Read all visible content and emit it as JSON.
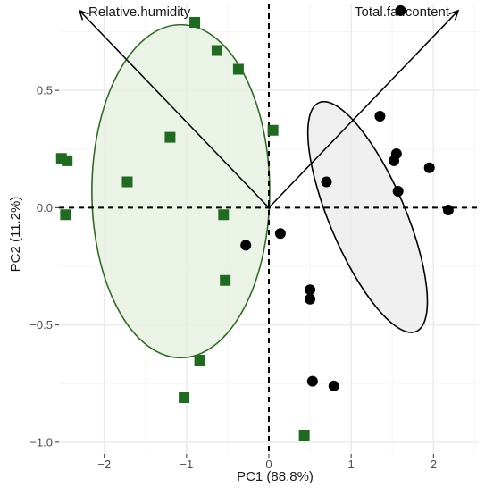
{
  "chart_data": {
    "type": "scatter",
    "title": "",
    "xlabel": "PC1 (88.8%)",
    "ylabel": "PC2 (11.2%)",
    "xlim": [
      -2.55,
      2.55
    ],
    "ylim": [
      -1.05,
      0.87
    ],
    "x_ticks": [
      -2,
      -1,
      0,
      1,
      2
    ],
    "y_ticks": [
      -1.0,
      -0.5,
      0.0,
      0.5
    ],
    "x_tick_labels": [
      "−2",
      "−1",
      "0",
      "1",
      "2"
    ],
    "y_tick_labels": [
      "−1.0",
      "−0.5",
      "0.0",
      "0.5"
    ],
    "grid": true,
    "colors": {
      "green_group": "#1f6b1f",
      "green_ellipse_stroke": "#2f6b24",
      "green_ellipse_fill": "#e8f1e2",
      "black_group": "#000000",
      "black_ellipse_fill": "#ececec",
      "grid_major": "#ebebeb",
      "grid_minor": "#f5f5f5"
    },
    "series": [
      {
        "marker": "square",
        "color": "#1f6b1f",
        "points": [
          [
            -0.9,
            0.79
          ],
          [
            -0.63,
            0.67
          ],
          [
            -0.37,
            0.59
          ],
          [
            -1.2,
            0.3
          ],
          [
            0.05,
            0.33
          ],
          [
            -1.72,
            0.11
          ],
          [
            -2.52,
            0.21
          ],
          [
            -2.45,
            0.2
          ],
          [
            -2.47,
            -0.03
          ],
          [
            -0.55,
            -0.03
          ],
          [
            -0.53,
            -0.31
          ],
          [
            -0.84,
            -0.65
          ],
          [
            -1.03,
            -0.81
          ],
          [
            0.43,
            -0.97
          ]
        ]
      },
      {
        "marker": "circle",
        "color": "#000000",
        "points": [
          [
            1.6,
            0.84
          ],
          [
            1.35,
            0.39
          ],
          [
            1.55,
            0.23
          ],
          [
            1.52,
            0.2
          ],
          [
            1.57,
            0.07
          ],
          [
            1.95,
            0.17
          ],
          [
            0.7,
            0.11
          ],
          [
            2.18,
            -0.01
          ],
          [
            0.14,
            -0.11
          ],
          [
            -0.28,
            -0.16
          ],
          [
            0.5,
            -0.35
          ],
          [
            0.5,
            -0.39
          ],
          [
            0.53,
            -0.74
          ],
          [
            0.79,
            -0.76
          ]
        ]
      }
    ],
    "ellipses": [
      {
        "center": [
          -1.07,
          0.07
        ],
        "semi_axes": [
          1.08,
          0.71
        ],
        "angle_deg": 0,
        "group": "green"
      },
      {
        "center": [
          1.2,
          -0.04
        ],
        "semi_axes": [
          0.46,
          0.53
        ],
        "angle_deg": 23,
        "group": "black"
      }
    ],
    "loadings": [
      {
        "label": "Relative.humidity",
        "x": -2.3,
        "y": 0.84
      },
      {
        "label": "Total.fat.content",
        "x": 2.3,
        "y": 0.84
      }
    ],
    "reference_lines": {
      "x": 0,
      "y": 0,
      "style": "dashed"
    }
  }
}
